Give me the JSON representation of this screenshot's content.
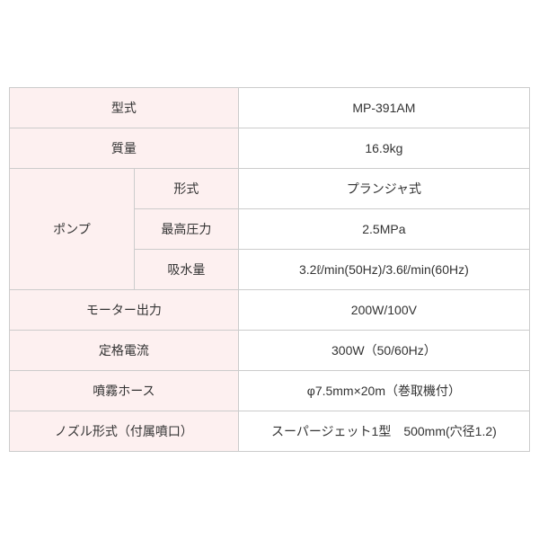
{
  "table": {
    "colors": {
      "label_bg": "#fdf0f0",
      "value_bg": "#ffffff",
      "border": "#cccccc",
      "text": "#333333"
    },
    "font_size": 14,
    "rows": [
      {
        "label": "型式",
        "value": "MP-391AM"
      },
      {
        "label": "質量",
        "value": "16.9kg"
      },
      {
        "group_label": "ポンプ",
        "subrows": [
          {
            "sublabel": "形式",
            "value": "プランジャ式"
          },
          {
            "sublabel": "最高圧力",
            "value": "2.5MPa"
          },
          {
            "sublabel": "吸水量",
            "value": "3.2ℓ/min(50Hz)/3.6ℓ/min(60Hz)"
          }
        ]
      },
      {
        "label": "モーター出力",
        "value": "200W/100V"
      },
      {
        "label": "定格電流",
        "value": "300W（50/60Hz）"
      },
      {
        "label": "噴霧ホース",
        "value": "φ7.5mm×20m（巻取機付）"
      },
      {
        "label": "ノズル形式（付属噴口）",
        "value": "スーパージェット1型　500mm(穴径1.2)"
      }
    ]
  }
}
